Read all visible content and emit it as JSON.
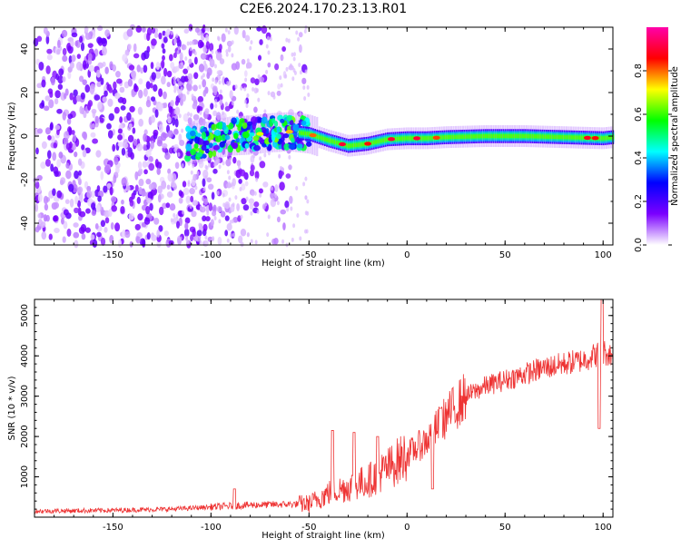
{
  "title": "C2E6.2024.170.23.13.R01",
  "chart_data": [
    {
      "type": "heatmap",
      "xlabel": "Height of straight line (km)",
      "ylabel": "Frequency (Hz)",
      "xlim": [
        -190,
        105
      ],
      "ylim": [
        -50,
        50
      ],
      "xticks": [
        -150,
        -100,
        -50,
        0,
        50,
        100
      ],
      "yticks": [
        -40,
        -20,
        0,
        20,
        40
      ],
      "grid": false,
      "colorbar": {
        "label": "Normalized spectral amplitude",
        "range": [
          0.0,
          1.0
        ],
        "ticks": [
          "0.0",
          "0.2",
          "0.4",
          "0.6",
          "0.8"
        ],
        "colormap": [
          "#ffffff",
          "#7b00ff",
          "#0000ff",
          "#00ffff",
          "#00ff00",
          "#ffff00",
          "#ff0000",
          "#ff00aa"
        ]
      },
      "ridge": [
        {
          "x": -110,
          "f": -3.5
        },
        {
          "x": -100,
          "f": -2
        },
        {
          "x": -90,
          "f": 0
        },
        {
          "x": -80,
          "f": 0.5
        },
        {
          "x": -70,
          "f": 1.5
        },
        {
          "x": -60,
          "f": 2
        },
        {
          "x": -50,
          "f": 1
        },
        {
          "x": -40,
          "f": -2
        },
        {
          "x": -30,
          "f": -4.5
        },
        {
          "x": -20,
          "f": -3.5
        },
        {
          "x": -10,
          "f": -1.5
        },
        {
          "x": 0,
          "f": -1
        },
        {
          "x": 10,
          "f": -1
        },
        {
          "x": 20,
          "f": -0.5
        },
        {
          "x": 40,
          "f": 0
        },
        {
          "x": 60,
          "f": 0
        },
        {
          "x": 80,
          "f": -0.5
        },
        {
          "x": 100,
          "f": -1
        },
        {
          "x": 105,
          "f": -0.5
        }
      ],
      "noise_region": {
        "x": [
          -190,
          -55
        ],
        "f": [
          -50,
          50
        ]
      }
    },
    {
      "type": "line",
      "xlabel": "Height of straight line (km)",
      "ylabel": "SNR (10 * v/v)",
      "xlim": [
        -190,
        105
      ],
      "ylim": [
        0,
        5400
      ],
      "xticks": [
        -150,
        -100,
        -50,
        0,
        50,
        100
      ],
      "yticks": [
        1000,
        2000,
        3000,
        4000,
        5000
      ],
      "grid": false,
      "color": "#ee3333",
      "trend": [
        {
          "x": -190,
          "y": 150
        },
        {
          "x": -150,
          "y": 170
        },
        {
          "x": -120,
          "y": 200
        },
        {
          "x": -100,
          "y": 250
        },
        {
          "x": -80,
          "y": 300
        },
        {
          "x": -60,
          "y": 320
        },
        {
          "x": -50,
          "y": 330
        },
        {
          "x": -40,
          "y": 600
        },
        {
          "x": -30,
          "y": 750
        },
        {
          "x": -20,
          "y": 900
        },
        {
          "x": -10,
          "y": 1200
        },
        {
          "x": 0,
          "y": 1550
        },
        {
          "x": 10,
          "y": 1900
        },
        {
          "x": 20,
          "y": 2500
        },
        {
          "x": 30,
          "y": 3000
        },
        {
          "x": 40,
          "y": 3250
        },
        {
          "x": 50,
          "y": 3400
        },
        {
          "x": 60,
          "y": 3550
        },
        {
          "x": 70,
          "y": 3700
        },
        {
          "x": 80,
          "y": 3800
        },
        {
          "x": 90,
          "y": 3900
        },
        {
          "x": 95,
          "y": 4000
        },
        {
          "x": 100,
          "y": 4100
        },
        {
          "x": 105,
          "y": 4000
        }
      ],
      "spikes": [
        {
          "x": -88,
          "y": 700
        },
        {
          "x": -38,
          "y": 2150
        },
        {
          "x": -27,
          "y": 2100
        },
        {
          "x": -15,
          "y": 2000
        },
        {
          "x": 17,
          "y": 2700
        },
        {
          "x": 99.5,
          "y": 5400
        },
        {
          "x": 98,
          "y": 2200
        },
        {
          "x": 13,
          "y": 700
        }
      ]
    }
  ]
}
